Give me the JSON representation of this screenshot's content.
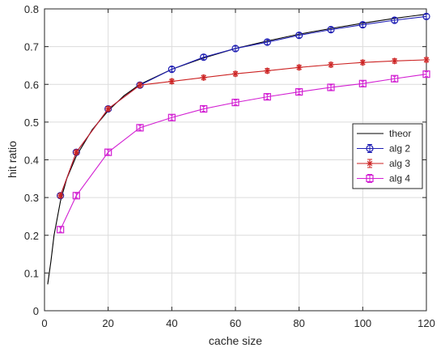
{
  "chart_data": {
    "type": "line",
    "xlabel": "cache size",
    "ylabel": "hit ratio",
    "xlim": [
      0,
      120
    ],
    "ylim": [
      0,
      0.8
    ],
    "x_ticks": [
      "0",
      "20",
      "40",
      "60",
      "80",
      "100",
      "120"
    ],
    "y_ticks": [
      "0",
      "0.1",
      "0.2",
      "0.3",
      "0.4",
      "0.5",
      "0.6",
      "0.7",
      "0.8"
    ],
    "grid": true,
    "legend_position": "right",
    "series": [
      {
        "name": "theor",
        "color": "#000000",
        "marker": "none",
        "x": [
          1,
          2,
          3,
          5,
          7,
          10,
          15,
          20,
          25,
          30,
          40,
          50,
          60,
          70,
          80,
          90,
          100,
          110,
          120
        ],
        "y": [
          0.07,
          0.13,
          0.2,
          0.29,
          0.35,
          0.41,
          0.48,
          0.53,
          0.57,
          0.6,
          0.64,
          0.67,
          0.695,
          0.715,
          0.733,
          0.748,
          0.762,
          0.775,
          0.786
        ]
      },
      {
        "name": "alg 2",
        "color": "#1f1fb4",
        "marker": "circle",
        "x": [
          5,
          10,
          20,
          30,
          40,
          50,
          60,
          70,
          80,
          90,
          100,
          110,
          120
        ],
        "y": [
          0.305,
          0.42,
          0.535,
          0.598,
          0.64,
          0.672,
          0.695,
          0.712,
          0.73,
          0.745,
          0.758,
          0.77,
          0.78
        ]
      },
      {
        "name": "alg 3",
        "color": "#cc2222",
        "marker": "star",
        "x": [
          5,
          10,
          20,
          30,
          40,
          50,
          60,
          70,
          80,
          90,
          100,
          110,
          120
        ],
        "y": [
          0.305,
          0.42,
          0.535,
          0.598,
          0.608,
          0.618,
          0.628,
          0.636,
          0.645,
          0.652,
          0.658,
          0.662,
          0.665
        ]
      },
      {
        "name": "alg 4",
        "color": "#d21fd2",
        "marker": "square",
        "x": [
          5,
          10,
          20,
          30,
          40,
          50,
          60,
          70,
          80,
          90,
          100,
          110,
          120
        ],
        "y": [
          0.215,
          0.305,
          0.42,
          0.485,
          0.512,
          0.535,
          0.552,
          0.567,
          0.58,
          0.592,
          0.602,
          0.615,
          0.627
        ]
      }
    ]
  }
}
